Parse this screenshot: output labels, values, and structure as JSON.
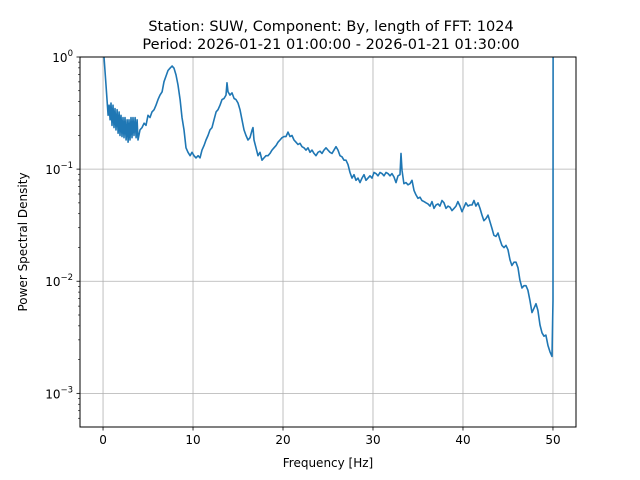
{
  "chart_data": {
    "type": "line",
    "title_line1": "Station: SUW, Component: By, length of FFT: 1024",
    "title_line2": "Period: 2026-01-21 01:00:00 - 2026-01-21 01:30:00",
    "xlabel": "Frequency [Hz]",
    "ylabel": "Power Spectral Density",
    "xlim": [
      -2.56,
      52.56
    ],
    "ylim_log10": [
      -3.3,
      0
    ],
    "yscale": "log",
    "grid": true,
    "line_color": "#1f77b4",
    "xticks": [
      0,
      10,
      20,
      30,
      40,
      50
    ],
    "xtick_labels": [
      "0",
      "10",
      "20",
      "30",
      "40",
      "50"
    ],
    "yticks_log10": [
      0,
      -1,
      -2,
      -3
    ],
    "ytick_labels": [
      {
        "base": "10",
        "exp": "0"
      },
      {
        "base": "10",
        "exp": "−1"
      },
      {
        "base": "10",
        "exp": "−2"
      },
      {
        "base": "10",
        "exp": "−3"
      }
    ],
    "series": [
      {
        "name": "PSD",
        "value_format": "[frequency_hz, log10_psd]",
        "points": [
          [
            0.11,
            0.3
          ],
          [
            0.11,
            0
          ],
          [
            0.33,
            -0.25
          ],
          [
            0.56,
            -0.52
          ],
          [
            0.67,
            -0.43
          ],
          [
            0.78,
            -0.56
          ],
          [
            0.89,
            -0.41
          ],
          [
            1.0,
            -0.61
          ],
          [
            1.11,
            -0.43
          ],
          [
            1.22,
            -0.63
          ],
          [
            1.33,
            -0.46
          ],
          [
            1.44,
            -0.65
          ],
          [
            1.56,
            -0.47
          ],
          [
            1.67,
            -0.68
          ],
          [
            1.78,
            -0.49
          ],
          [
            1.89,
            -0.7
          ],
          [
            2.0,
            -0.52
          ],
          [
            2.11,
            -0.71
          ],
          [
            2.22,
            -0.54
          ],
          [
            2.33,
            -0.72
          ],
          [
            2.44,
            -0.54
          ],
          [
            2.56,
            -0.74
          ],
          [
            2.67,
            -0.56
          ],
          [
            2.78,
            -0.76
          ],
          [
            2.89,
            -0.56
          ],
          [
            3.0,
            -0.74
          ],
          [
            3.11,
            -0.54
          ],
          [
            3.22,
            -0.72
          ],
          [
            3.33,
            -0.54
          ],
          [
            3.44,
            -0.7
          ],
          [
            3.56,
            -0.54
          ],
          [
            3.67,
            -0.72
          ],
          [
            3.78,
            -0.56
          ],
          [
            3.89,
            -0.74
          ],
          [
            4.11,
            -0.65
          ],
          [
            4.33,
            -0.63
          ],
          [
            4.56,
            -0.59
          ],
          [
            4.78,
            -0.61
          ],
          [
            5.0,
            -0.52
          ],
          [
            5.22,
            -0.54
          ],
          [
            5.44,
            -0.49
          ],
          [
            5.67,
            -0.47
          ],
          [
            5.89,
            -0.43
          ],
          [
            6.11,
            -0.38
          ],
          [
            6.33,
            -0.34
          ],
          [
            6.56,
            -0.31
          ],
          [
            6.78,
            -0.22
          ],
          [
            7.0,
            -0.17
          ],
          [
            7.22,
            -0.12
          ],
          [
            7.44,
            -0.1
          ],
          [
            7.67,
            -0.08
          ],
          [
            7.89,
            -0.1
          ],
          [
            8.11,
            -0.16
          ],
          [
            8.33,
            -0.25
          ],
          [
            8.56,
            -0.38
          ],
          [
            8.78,
            -0.54
          ],
          [
            9.0,
            -0.65
          ],
          [
            9.22,
            -0.81
          ],
          [
            9.44,
            -0.85
          ],
          [
            9.67,
            -0.88
          ],
          [
            9.89,
            -0.85
          ],
          [
            10.11,
            -0.88
          ],
          [
            10.33,
            -0.9
          ],
          [
            10.56,
            -0.88
          ],
          [
            10.78,
            -0.9
          ],
          [
            11.0,
            -0.83
          ],
          [
            11.22,
            -0.79
          ],
          [
            11.44,
            -0.74
          ],
          [
            11.67,
            -0.7
          ],
          [
            11.89,
            -0.65
          ],
          [
            12.11,
            -0.63
          ],
          [
            12.33,
            -0.56
          ],
          [
            12.56,
            -0.49
          ],
          [
            12.78,
            -0.47
          ],
          [
            13.0,
            -0.43
          ],
          [
            13.22,
            -0.38
          ],
          [
            13.44,
            -0.37
          ],
          [
            13.67,
            -0.34
          ],
          [
            13.78,
            -0.23
          ],
          [
            13.89,
            -0.31
          ],
          [
            14.11,
            -0.34
          ],
          [
            14.33,
            -0.32
          ],
          [
            14.56,
            -0.37
          ],
          [
            14.78,
            -0.38
          ],
          [
            15.0,
            -0.41
          ],
          [
            15.22,
            -0.47
          ],
          [
            15.44,
            -0.56
          ],
          [
            15.67,
            -0.65
          ],
          [
            15.89,
            -0.7
          ],
          [
            16.11,
            -0.74
          ],
          [
            16.33,
            -0.72
          ],
          [
            16.56,
            -0.65
          ],
          [
            16.67,
            -0.63
          ],
          [
            16.78,
            -0.74
          ],
          [
            17.0,
            -0.81
          ],
          [
            17.22,
            -0.88
          ],
          [
            17.44,
            -0.85
          ],
          [
            17.67,
            -0.92
          ],
          [
            17.89,
            -0.9
          ],
          [
            18.11,
            -0.88
          ],
          [
            18.33,
            -0.88
          ],
          [
            18.56,
            -0.86
          ],
          [
            18.78,
            -0.83
          ],
          [
            19.0,
            -0.81
          ],
          [
            19.22,
            -0.79
          ],
          [
            19.44,
            -0.76
          ],
          [
            19.67,
            -0.74
          ],
          [
            19.89,
            -0.72
          ],
          [
            20.11,
            -0.71
          ],
          [
            20.33,
            -0.71
          ],
          [
            20.56,
            -0.67
          ],
          [
            20.78,
            -0.71
          ],
          [
            21.0,
            -0.7
          ],
          [
            21.22,
            -0.74
          ],
          [
            21.44,
            -0.76
          ],
          [
            21.67,
            -0.78
          ],
          [
            21.89,
            -0.77
          ],
          [
            22.11,
            -0.8
          ],
          [
            22.33,
            -0.81
          ],
          [
            22.56,
            -0.83
          ],
          [
            22.78,
            -0.81
          ],
          [
            23.0,
            -0.85
          ],
          [
            23.22,
            -0.83
          ],
          [
            23.44,
            -0.86
          ],
          [
            23.67,
            -0.88
          ],
          [
            23.89,
            -0.85
          ],
          [
            24.11,
            -0.84
          ],
          [
            24.33,
            -0.86
          ],
          [
            24.56,
            -0.83
          ],
          [
            24.78,
            -0.81
          ],
          [
            25.0,
            -0.83
          ],
          [
            25.22,
            -0.85
          ],
          [
            25.44,
            -0.86
          ],
          [
            25.67,
            -0.83
          ],
          [
            25.89,
            -0.8
          ],
          [
            26.11,
            -0.83
          ],
          [
            26.33,
            -0.88
          ],
          [
            26.56,
            -0.89
          ],
          [
            26.78,
            -0.92
          ],
          [
            27.0,
            -0.92
          ],
          [
            27.22,
            -0.96
          ],
          [
            27.44,
            -1.03
          ],
          [
            27.67,
            -1.08
          ],
          [
            27.89,
            -1.05
          ],
          [
            28.11,
            -1.1
          ],
          [
            28.33,
            -1.08
          ],
          [
            28.56,
            -1.12
          ],
          [
            28.78,
            -1.08
          ],
          [
            29.0,
            -1.05
          ],
          [
            29.22,
            -1.1
          ],
          [
            29.44,
            -1.08
          ],
          [
            29.67,
            -1.06
          ],
          [
            29.89,
            -1.08
          ],
          [
            30.11,
            -1.03
          ],
          [
            30.33,
            -1.04
          ],
          [
            30.56,
            -1.06
          ],
          [
            30.78,
            -1.03
          ],
          [
            31.0,
            -1.04
          ],
          [
            31.22,
            -1.06
          ],
          [
            31.44,
            -1.03
          ],
          [
            31.67,
            -1.04
          ],
          [
            31.89,
            -1.06
          ],
          [
            32.11,
            -1.04
          ],
          [
            32.33,
            -1.07
          ],
          [
            32.56,
            -1.12
          ],
          [
            32.78,
            -1.06
          ],
          [
            33.0,
            -1.05
          ],
          [
            33.11,
            -0.86
          ],
          [
            33.22,
            -1.01
          ],
          [
            33.44,
            -1.13
          ],
          [
            33.67,
            -1.12
          ],
          [
            33.89,
            -1.14
          ],
          [
            34.11,
            -1.13
          ],
          [
            34.33,
            -1.1
          ],
          [
            34.56,
            -1.19
          ],
          [
            34.78,
            -1.23
          ],
          [
            35.0,
            -1.26
          ],
          [
            35.22,
            -1.25
          ],
          [
            35.44,
            -1.28
          ],
          [
            35.67,
            -1.29
          ],
          [
            35.89,
            -1.3
          ],
          [
            36.11,
            -1.31
          ],
          [
            36.33,
            -1.33
          ],
          [
            36.56,
            -1.29
          ],
          [
            36.78,
            -1.35
          ],
          [
            37.0,
            -1.32
          ],
          [
            37.22,
            -1.31
          ],
          [
            37.44,
            -1.33
          ],
          [
            37.67,
            -1.28
          ],
          [
            37.89,
            -1.3
          ],
          [
            38.11,
            -1.35
          ],
          [
            38.33,
            -1.33
          ],
          [
            38.56,
            -1.34
          ],
          [
            38.78,
            -1.37
          ],
          [
            39.0,
            -1.35
          ],
          [
            39.22,
            -1.33
          ],
          [
            39.44,
            -1.29
          ],
          [
            39.67,
            -1.33
          ],
          [
            39.89,
            -1.38
          ],
          [
            40.11,
            -1.34
          ],
          [
            40.33,
            -1.3
          ],
          [
            40.56,
            -1.33
          ],
          [
            40.78,
            -1.32
          ],
          [
            41.0,
            -1.32
          ],
          [
            41.22,
            -1.28
          ],
          [
            41.44,
            -1.33
          ],
          [
            41.67,
            -1.3
          ],
          [
            41.89,
            -1.35
          ],
          [
            42.11,
            -1.41
          ],
          [
            42.33,
            -1.46
          ],
          [
            42.56,
            -1.44
          ],
          [
            42.78,
            -1.41
          ],
          [
            43.0,
            -1.47
          ],
          [
            43.22,
            -1.53
          ],
          [
            43.44,
            -1.59
          ],
          [
            43.67,
            -1.6
          ],
          [
            43.89,
            -1.57
          ],
          [
            44.11,
            -1.63
          ],
          [
            44.33,
            -1.68
          ],
          [
            44.56,
            -1.7
          ],
          [
            44.78,
            -1.68
          ],
          [
            45.0,
            -1.72
          ],
          [
            45.22,
            -1.81
          ],
          [
            45.44,
            -1.86
          ],
          [
            45.67,
            -1.83
          ],
          [
            45.89,
            -1.83
          ],
          [
            46.11,
            -1.88
          ],
          [
            46.33,
            -1.99
          ],
          [
            46.56,
            -2.06
          ],
          [
            46.78,
            -2.04
          ],
          [
            47.0,
            -2.04
          ],
          [
            47.22,
            -2.08
          ],
          [
            47.44,
            -2.17
          ],
          [
            47.67,
            -2.28
          ],
          [
            47.89,
            -2.24
          ],
          [
            48.11,
            -2.2
          ],
          [
            48.33,
            -2.26
          ],
          [
            48.56,
            -2.39
          ],
          [
            48.78,
            -2.46
          ],
          [
            49.0,
            -2.49
          ],
          [
            49.22,
            -2.48
          ],
          [
            49.44,
            -2.57
          ],
          [
            49.67,
            -2.63
          ],
          [
            49.89,
            -2.67
          ],
          [
            50.0,
            -2.17
          ],
          [
            50.02,
            0
          ],
          [
            50.03,
            0.3
          ]
        ]
      }
    ]
  }
}
